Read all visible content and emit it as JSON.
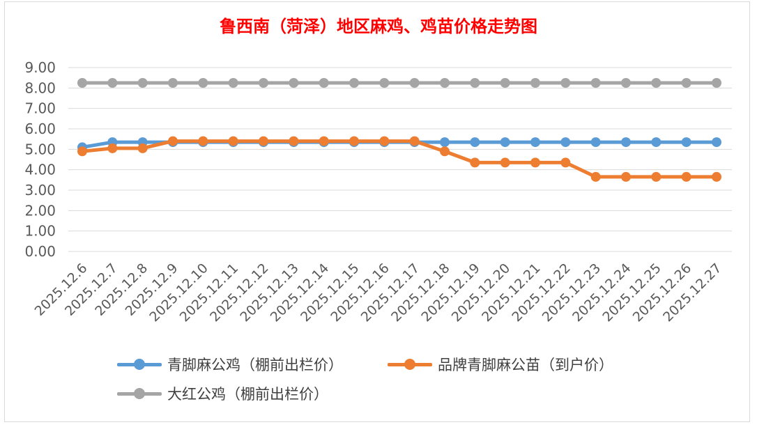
{
  "chart_data": {
    "type": "line",
    "title": "鲁西南（菏泽）地区麻鸡、鸡苗价格走势图",
    "categories": [
      "2025.12.6",
      "2025.12.7",
      "2025.12.8",
      "2025.12.9",
      "2025.12.10",
      "2025.12.11",
      "2025.12.12",
      "2025.12.13",
      "2025.12.14",
      "2025.12.15",
      "2025.12.16",
      "2025.12.17",
      "2025.12.18",
      "2025.12.19",
      "2025.12.20",
      "2025.12.21",
      "2025.12.22",
      "2025.12.23",
      "2025.12.24",
      "2025.12.25",
      "2025.12.26",
      "2025.12.27"
    ],
    "yticks": [
      "0.00",
      "1.00",
      "2.00",
      "3.00",
      "4.00",
      "5.00",
      "6.00",
      "7.00",
      "8.00",
      "9.00"
    ],
    "ylim": [
      0,
      9
    ],
    "grid": true,
    "legend_position": "bottom",
    "series": [
      {
        "name": "青脚麻公鸡（棚前出栏价）",
        "color": "#5b9bd5",
        "values": [
          5.1,
          5.35,
          5.35,
          5.35,
          5.35,
          5.35,
          5.35,
          5.35,
          5.35,
          5.35,
          5.35,
          5.35,
          5.35,
          5.35,
          5.35,
          5.35,
          5.35,
          5.35,
          5.35,
          5.35,
          5.35,
          5.35
        ]
      },
      {
        "name": "品牌青脚麻公苗（到户价）",
        "color": "#ed7d31",
        "values": [
          4.9,
          5.05,
          5.05,
          5.4,
          5.4,
          5.4,
          5.4,
          5.4,
          5.4,
          5.4,
          5.4,
          5.4,
          4.9,
          4.35,
          4.35,
          4.35,
          4.35,
          3.65,
          3.65,
          3.65,
          3.65,
          3.65
        ]
      },
      {
        "name": "大红公鸡（棚前出栏价）",
        "color": "#a5a5a5",
        "values": [
          8.25,
          8.25,
          8.25,
          8.25,
          8.25,
          8.25,
          8.25,
          8.25,
          8.25,
          8.25,
          8.25,
          8.25,
          8.25,
          8.25,
          8.25,
          8.25,
          8.25,
          8.25,
          8.25,
          8.25,
          8.25,
          8.25
        ]
      }
    ]
  }
}
